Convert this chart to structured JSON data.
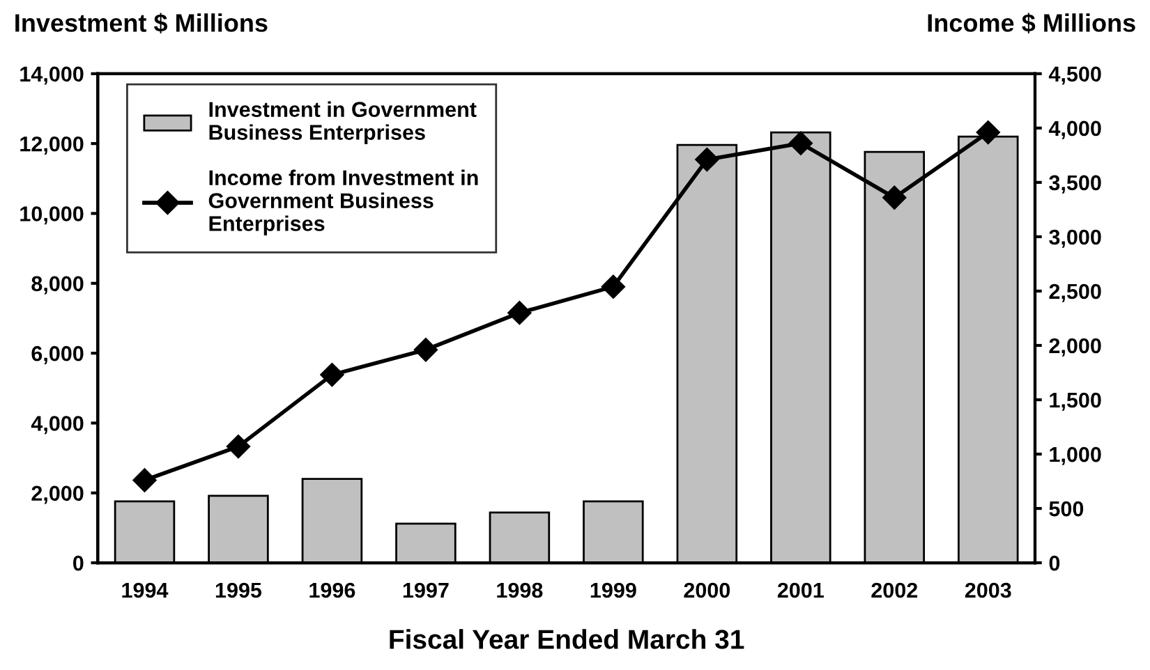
{
  "chart_data": {
    "type": "bar",
    "ylabel": "Investment $ Millions",
    "y2label": "Income $ Millions",
    "xlabel": "Fiscal Year Ended March 31",
    "categories": [
      "1994",
      "1995",
      "1996",
      "1997",
      "1998",
      "1999",
      "2000",
      "2001",
      "2002",
      "2003"
    ],
    "series": [
      {
        "name": "Investment in Government\nBusiness Enterprises",
        "color": "#c0c0c0",
        "values": [
          1760,
          1920,
          2400,
          1120,
          1440,
          1760,
          11960,
          12320,
          11760,
          12200
        ]
      },
      {
        "name": "Income from Investment in\nGovernment Business\nEnterprises",
        "type": "line",
        "axis": "y2",
        "color": "#000000",
        "marker": "diamond",
        "values": [
          760,
          1070,
          1730,
          1960,
          2300,
          2540,
          3710,
          3860,
          3360,
          3960
        ]
      }
    ],
    "ylim": [
      0,
      14000
    ],
    "yticks": [
      {
        "value": 0,
        "label": "0"
      },
      {
        "value": 2000,
        "label": "2,000"
      },
      {
        "value": 4000,
        "label": "4,000"
      },
      {
        "value": 6000,
        "label": "6,000"
      },
      {
        "value": 8000,
        "label": "8,000"
      },
      {
        "value": 10000,
        "label": "10,000"
      },
      {
        "value": 12000,
        "label": "12,000"
      },
      {
        "value": 14000,
        "label": "14,000"
      }
    ],
    "y2lim": [
      0,
      4500
    ],
    "y2ticks": [
      {
        "value": 0,
        "label": "0"
      },
      {
        "value": 500,
        "label": "500"
      },
      {
        "value": 1000,
        "label": "1,000"
      },
      {
        "value": 1500,
        "label": "1,500"
      },
      {
        "value": 2000,
        "label": "2,000"
      },
      {
        "value": 2500,
        "label": "2,500"
      },
      {
        "value": 3000,
        "label": "3,000"
      },
      {
        "value": 3500,
        "label": "3,500"
      },
      {
        "value": 4000,
        "label": "4,000"
      },
      {
        "value": 4500,
        "label": "4,500"
      }
    ],
    "grid": false,
    "legend": "top left"
  }
}
